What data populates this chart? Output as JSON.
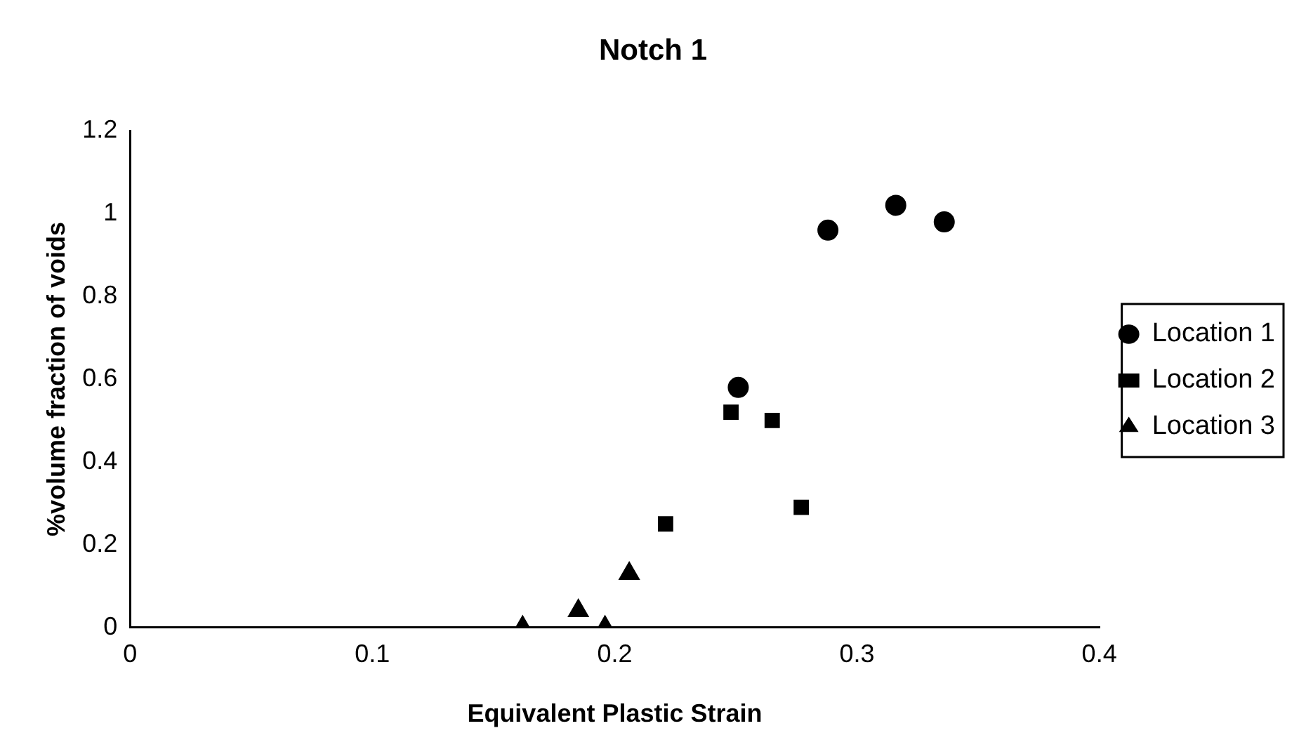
{
  "chart_data": {
    "type": "scatter",
    "title": "Notch 1",
    "xlabel": "Equivalent Plastic Strain",
    "ylabel": "%volume fraction of voids",
    "xlim": [
      0,
      0.4
    ],
    "xticks": [
      0,
      0.1,
      0.2,
      0.3,
      0.4
    ],
    "ylim": [
      0,
      1.2
    ],
    "yticks": [
      0,
      0.2,
      0.4,
      0.6,
      0.8,
      1,
      1.2
    ],
    "grid": false,
    "legend": "right",
    "series": [
      {
        "name": "Location 1",
        "color": "#000000",
        "marker": "circle",
        "x": [
          0.251,
          0.288,
          0.316,
          0.336
        ],
        "values": [
          0.58,
          0.96,
          1.02,
          0.98
        ]
      },
      {
        "name": "Location 2",
        "color": "#000000",
        "marker": "square",
        "x": [
          0.221,
          0.248,
          0.265,
          0.277
        ],
        "values": [
          0.25,
          0.52,
          0.5,
          0.29
        ]
      },
      {
        "name": "Location 3",
        "color": "#000000",
        "marker": "triangle",
        "x": [
          0.162,
          0.185,
          0.196,
          0.206
        ],
        "values": [
          0.0,
          0.04,
          0.0,
          0.13
        ]
      }
    ]
  }
}
